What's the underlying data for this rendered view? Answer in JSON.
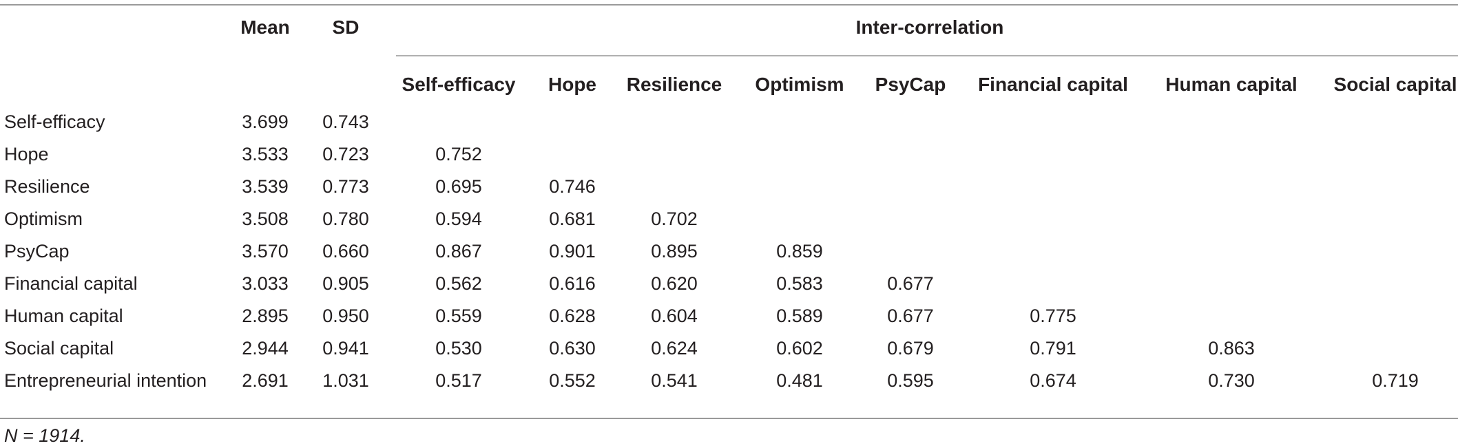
{
  "table": {
    "header": {
      "mean": "Mean",
      "sd": "SD",
      "group": "Inter-correlation",
      "columns": [
        "Self-efficacy",
        "Hope",
        "Resilience",
        "Optimism",
        "PsyCap",
        "Financial capital",
        "Human capital",
        "Social capital"
      ]
    },
    "rows": [
      {
        "label": "Self-efficacy",
        "mean": "3.699",
        "sd": "0.743",
        "corr": []
      },
      {
        "label": "Hope",
        "mean": "3.533",
        "sd": "0.723",
        "corr": [
          "0.752"
        ]
      },
      {
        "label": "Resilience",
        "mean": "3.539",
        "sd": "0.773",
        "corr": [
          "0.695",
          "0.746"
        ]
      },
      {
        "label": "Optimism",
        "mean": "3.508",
        "sd": "0.780",
        "corr": [
          "0.594",
          "0.681",
          "0.702"
        ]
      },
      {
        "label": "PsyCap",
        "mean": "3.570",
        "sd": "0.660",
        "corr": [
          "0.867",
          "0.901",
          "0.895",
          "0.859"
        ]
      },
      {
        "label": "Financial capital",
        "mean": "3.033",
        "sd": "0.905",
        "corr": [
          "0.562",
          "0.616",
          "0.620",
          "0.583",
          "0.677"
        ]
      },
      {
        "label": "Human capital",
        "mean": "2.895",
        "sd": "0.950",
        "corr": [
          "0.559",
          "0.628",
          "0.604",
          "0.589",
          "0.677",
          "0.775"
        ]
      },
      {
        "label": "Social capital",
        "mean": "2.944",
        "sd": "0.941",
        "corr": [
          "0.530",
          "0.630",
          "0.624",
          "0.602",
          "0.679",
          "0.791",
          "0.863"
        ]
      },
      {
        "label": "Entrepreneurial intention",
        "mean": "2.691",
        "sd": "1.031",
        "corr": [
          "0.517",
          "0.552",
          "0.541",
          "0.481",
          "0.595",
          "0.674",
          "0.730",
          "0.719"
        ]
      }
    ],
    "note": "N = 1914."
  }
}
